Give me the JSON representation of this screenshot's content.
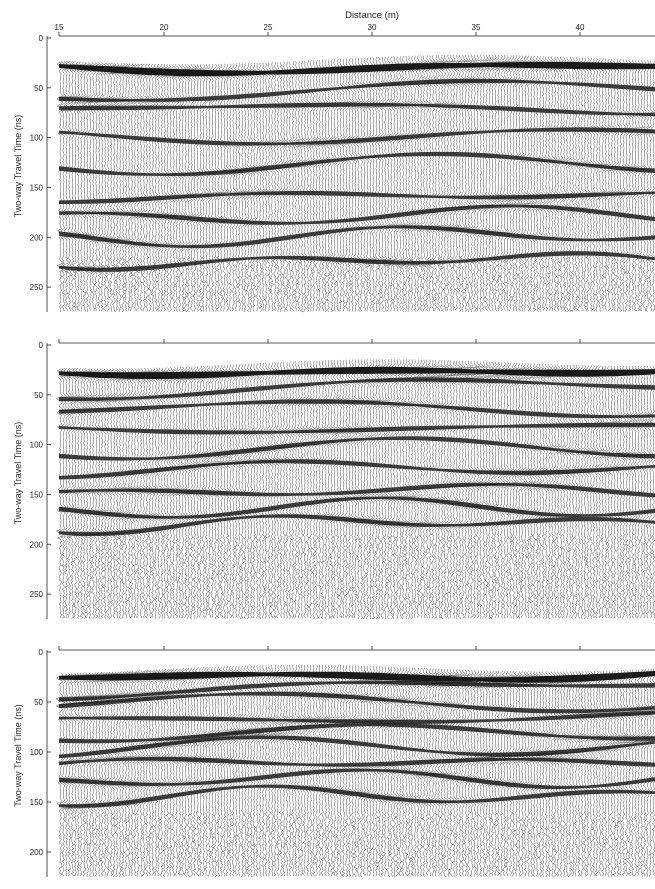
{
  "chart_data": [
    {
      "type": "heatmap",
      "variant": "radargram",
      "xlabel": "Distance (m)",
      "ylabel": "Two-way Travel Time (ns)",
      "xticks": [
        15,
        20,
        25,
        30,
        35,
        40
      ],
      "xlim": [
        15,
        44
      ],
      "yticks": [
        0,
        50,
        100,
        150,
        200,
        250
      ],
      "ylim": [
        0,
        275
      ],
      "show_x_labels": true,
      "surface_ns": 25,
      "signal_end_ns": 220,
      "reflectors_ns": [
        28,
        55,
        72,
        100,
        128,
        160,
        180,
        200,
        225
      ],
      "colors": {
        "ink": "#111111",
        "paper": "#ffffff"
      }
    },
    {
      "type": "heatmap",
      "variant": "radargram",
      "xlabel": "",
      "ylabel": "Two-way Travel Time (ns)",
      "xticks": [
        15,
        20,
        25,
        30,
        35,
        40
      ],
      "xlim": [
        15,
        44
      ],
      "yticks": [
        0,
        50,
        100,
        150,
        200,
        250
      ],
      "ylim": [
        0,
        275
      ],
      "show_x_labels": false,
      "surface_ns": 22,
      "signal_end_ns": 190,
      "reflectors_ns": [
        25,
        45,
        65,
        85,
        105,
        125,
        148,
        165,
        180
      ],
      "colors": {
        "ink": "#111111",
        "paper": "#ffffff"
      }
    },
    {
      "type": "heatmap",
      "variant": "radargram",
      "xlabel": "",
      "ylabel": "Two-way Travel Time (ns)",
      "xticks": [
        15,
        20,
        25,
        30,
        35,
        40
      ],
      "xlim": [
        15,
        44
      ],
      "yticks": [
        0,
        50,
        100,
        150,
        200
      ],
      "ylim": [
        0,
        225
      ],
      "show_x_labels": false,
      "surface_ns": 20,
      "signal_end_ns": 160,
      "reflectors_ns": [
        22,
        38,
        52,
        68,
        82,
        96,
        112,
        128,
        145
      ],
      "colors": {
        "ink": "#111111",
        "paper": "#ffffff"
      }
    }
  ]
}
